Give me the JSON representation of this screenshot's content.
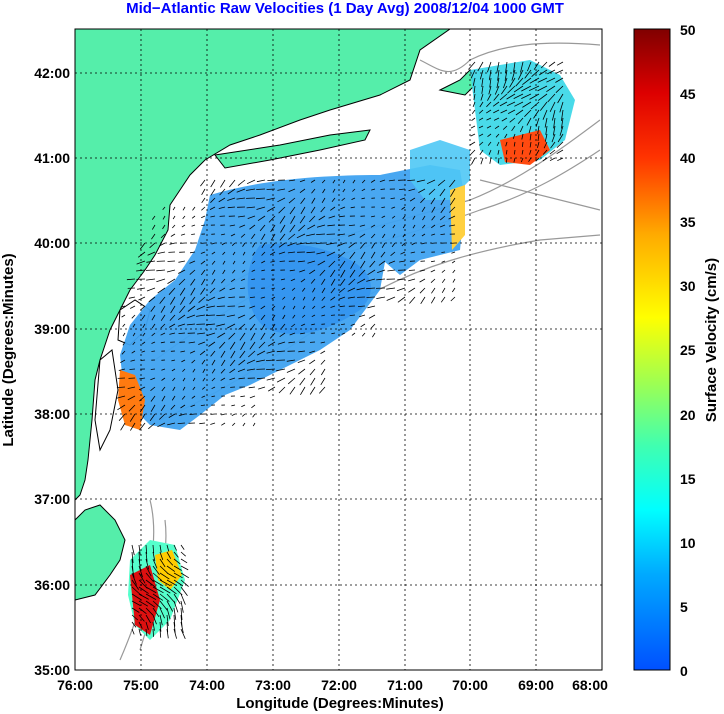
{
  "title": "Mid−Atlantic Raw Velocities (1 Day Avg) 2008/12/04 1000 GMT",
  "xaxis": {
    "label": "Longitude (Degrees:Minutes)",
    "ticks": [
      "76:00",
      "75:00",
      "74:00",
      "73:00",
      "72:00",
      "71:00",
      "70:00",
      "69:00",
      "68:00"
    ]
  },
  "yaxis": {
    "label": "Latitude (Degrees:Minutes)",
    "ticks": [
      "42:00",
      "41:00",
      "40:00",
      "39:00",
      "38:00",
      "37:00",
      "36:00",
      "35:00"
    ]
  },
  "colorbar": {
    "label": "Surface Velocity (cm/s)",
    "ticks": [
      "50",
      "45",
      "40",
      "35",
      "30",
      "25",
      "20",
      "15",
      "10",
      "5",
      "0"
    ],
    "range": [
      0,
      50
    ]
  },
  "map_extent": {
    "lon": [
      -76,
      -68
    ],
    "lat": [
      35,
      42.5
    ]
  },
  "colors": {
    "land": "#55eeaa",
    "title": "#0000ff",
    "coastline": "#000000",
    "bathymetry": "#999999"
  }
}
